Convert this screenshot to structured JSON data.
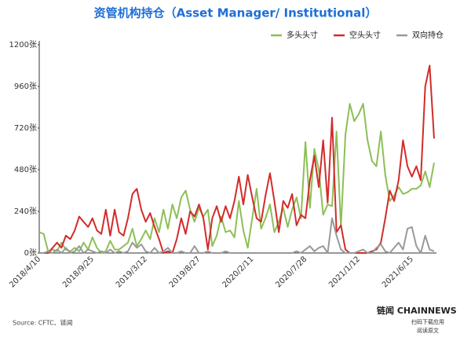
{
  "chart_data": {
    "type": "line",
    "title": "资管机构持仓（Asset Manager/ Institutional）",
    "source": "Source: CFTC、链闻",
    "brand": "链闻 CHAINNEWS",
    "brand_sub": [
      "扫码下载应用",
      "阅读原文"
    ],
    "categories": [
      "2018/4/10",
      null,
      null,
      null,
      null,
      null,
      null,
      null,
      null,
      null,
      null,
      null,
      "2018/9/25",
      null,
      null,
      null,
      null,
      null,
      null,
      null,
      null,
      null,
      null,
      null,
      "2019/3/12",
      null,
      null,
      null,
      null,
      null,
      null,
      null,
      null,
      null,
      null,
      null,
      "2019/8/27",
      null,
      null,
      null,
      null,
      null,
      null,
      null,
      null,
      null,
      null,
      null,
      "2020/2/11",
      null,
      null,
      null,
      null,
      null,
      null,
      null,
      null,
      null,
      null,
      null,
      "2020/7/28",
      null,
      null,
      null,
      null,
      null,
      null,
      null,
      null,
      null,
      null,
      null,
      "2021/1/12",
      null,
      null,
      null,
      null,
      null,
      null,
      null,
      null,
      null,
      null,
      null,
      "2021/6/15",
      null,
      null,
      null,
      null,
      null
    ],
    "series": [
      {
        "name": "多头头寸",
        "color": "#8dbf57",
        "values": [
          120,
          110,
          10,
          20,
          10,
          60,
          20,
          10,
          30,
          10,
          60,
          20,
          90,
          30,
          0,
          10,
          70,
          20,
          20,
          40,
          60,
          140,
          40,
          80,
          130,
          80,
          200,
          120,
          250,
          140,
          280,
          200,
          320,
          360,
          250,
          180,
          260,
          210,
          250,
          40,
          100,
          210,
          120,
          130,
          90,
          300,
          130,
          30,
          200,
          370,
          140,
          200,
          280,
          120,
          180,
          260,
          150,
          250,
          320,
          200,
          640,
          260,
          600,
          480,
          220,
          280,
          270,
          700,
          150,
          680,
          860,
          760,
          800,
          860,
          650,
          530,
          500,
          700,
          450,
          300,
          330,
          380,
          340,
          350,
          370,
          370,
          390,
          470,
          380,
          520
        ]
      },
      {
        "name": "空头头寸",
        "color": "#d32b2b",
        "values": [
          0,
          0,
          0,
          30,
          60,
          30,
          100,
          80,
          130,
          210,
          180,
          150,
          200,
          130,
          110,
          250,
          100,
          250,
          120,
          100,
          200,
          340,
          370,
          250,
          180,
          230,
          150,
          80,
          0,
          10,
          0,
          80,
          200,
          110,
          240,
          210,
          280,
          200,
          20,
          200,
          270,
          180,
          270,
          200,
          300,
          440,
          280,
          450,
          320,
          200,
          180,
          330,
          460,
          300,
          120,
          300,
          260,
          340,
          160,
          220,
          200,
          420,
          560,
          380,
          650,
          290,
          780,
          120,
          160,
          20,
          0,
          0,
          0,
          0,
          0,
          10,
          20,
          60,
          200,
          360,
          300,
          420,
          650,
          500,
          440,
          500,
          420,
          960,
          1080,
          660
        ]
      },
      {
        "name": "双向持仓",
        "color": "#999999",
        "values": [
          0,
          0,
          10,
          0,
          20,
          0,
          30,
          0,
          10,
          40,
          0,
          20,
          10,
          0,
          10,
          0,
          20,
          0,
          10,
          0,
          10,
          60,
          30,
          50,
          10,
          0,
          30,
          0,
          10,
          30,
          0,
          0,
          10,
          0,
          0,
          40,
          0,
          0,
          10,
          0,
          0,
          0,
          10,
          0,
          0,
          0,
          0,
          0,
          0,
          0,
          0,
          0,
          0,
          0,
          0,
          0,
          0,
          0,
          10,
          0,
          20,
          40,
          10,
          30,
          40,
          0,
          200,
          100,
          20,
          0,
          0,
          0,
          10,
          20,
          0,
          0,
          30,
          50,
          10,
          0,
          30,
          60,
          20,
          140,
          150,
          40,
          0,
          100,
          20,
          10
        ]
      }
    ],
    "ylim": [
      0,
      1200
    ],
    "yticks": [
      {
        "value": 0,
        "label": "0张"
      },
      {
        "value": 240,
        "label": "240张"
      },
      {
        "value": 480,
        "label": "480张"
      },
      {
        "value": 720,
        "label": "720张"
      },
      {
        "value": 960,
        "label": "960张"
      },
      {
        "value": 1200,
        "label": "1200张"
      }
    ],
    "grid": false
  }
}
